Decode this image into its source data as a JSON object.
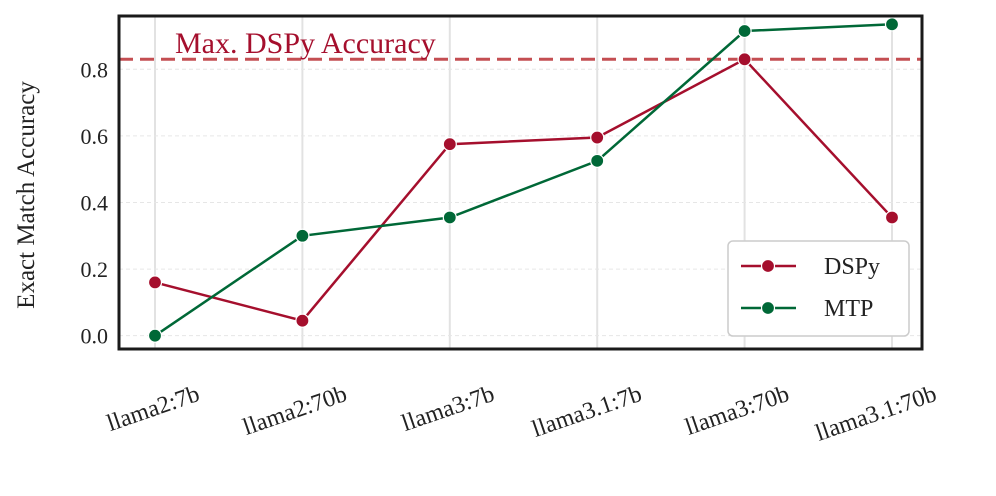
{
  "chart_data": {
    "type": "line",
    "ylabel": "Exact Match Accuracy",
    "categories": [
      "llama2:7b",
      "llama2:70b",
      "llama3:7b",
      "llama3.1:7b",
      "llama3:70b",
      "llama3.1:70b"
    ],
    "ylim": [
      -0.04,
      0.96
    ],
    "yticks": [
      0.0,
      0.2,
      0.4,
      0.6,
      0.8
    ],
    "ytick_labels": [
      "0.0",
      "0.2",
      "0.4",
      "0.6",
      "0.8"
    ],
    "grid": true,
    "legend_position": "lower-right",
    "series": [
      {
        "name": "DSPy",
        "color": "#A50F2D",
        "values": [
          0.16,
          0.045,
          0.575,
          0.595,
          0.83,
          0.355
        ]
      },
      {
        "name": "MTP",
        "color": "#006837",
        "values": [
          0.0,
          0.3,
          0.355,
          0.525,
          0.915,
          0.935
        ]
      }
    ],
    "reference_line": {
      "label": "Max. DSPy Accuracy",
      "value": 0.83,
      "color": "#C44E52",
      "label_color": "#A50F2D"
    }
  }
}
